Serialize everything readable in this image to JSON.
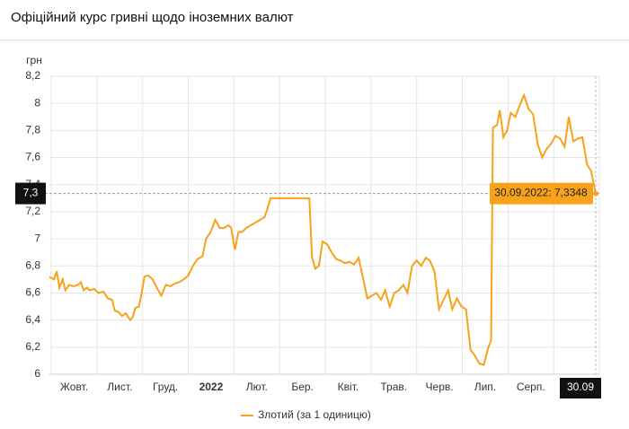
{
  "header": {
    "title": "Офіційний курс гривні щодо іноземних валют"
  },
  "chart_data": {
    "type": "line",
    "y_label": "грн",
    "x": [
      -0.04,
      0.06,
      0.12,
      0.18,
      0.25,
      0.31,
      0.39,
      0.49,
      0.59,
      0.65,
      0.71,
      0.78,
      0.84,
      0.94,
      1.04,
      1.14,
      1.24,
      1.33,
      1.39,
      1.47,
      1.55,
      1.63,
      1.73,
      1.78,
      1.84,
      1.92,
      1.98,
      2.04,
      2.12,
      2.22,
      2.31,
      2.41,
      2.51,
      2.61,
      2.71,
      2.8,
      2.9,
      3.0,
      3.1,
      3.2,
      3.31,
      3.39,
      3.49,
      3.59,
      3.69,
      3.78,
      3.88,
      3.94,
      4.02,
      4.1,
      4.18,
      4.27,
      4.37,
      4.47,
      4.57,
      4.67,
      4.73,
      4.8,
      4.96,
      5.16,
      5.35,
      5.65,
      5.71,
      5.78,
      5.86,
      5.94,
      6.04,
      6.14,
      6.24,
      6.33,
      6.43,
      6.53,
      6.63,
      6.73,
      6.82,
      6.92,
      7.02,
      7.12,
      7.22,
      7.31,
      7.41,
      7.51,
      7.61,
      7.71,
      7.8,
      7.9,
      8.0,
      8.1,
      8.2,
      8.29,
      8.39,
      8.49,
      8.59,
      8.69,
      8.78,
      8.88,
      8.98,
      9.08,
      9.18,
      9.27,
      9.37,
      9.47,
      9.57,
      9.63,
      9.67,
      9.76,
      9.82,
      9.9,
      9.98,
      10.06,
      10.16,
      10.25,
      10.35,
      10.45,
      10.55,
      10.65,
      10.75,
      10.84,
      10.94,
      11.04,
      11.14,
      11.24,
      11.33,
      11.43,
      11.53,
      11.63,
      11.73,
      11.82,
      11.92
    ],
    "series": [
      {
        "name": "Злотий (за 1 одиницю)",
        "color": "#f7a21b",
        "values": [
          6.72,
          6.7,
          6.76,
          6.64,
          6.7,
          6.62,
          6.66,
          6.65,
          6.66,
          6.68,
          6.62,
          6.64,
          6.62,
          6.63,
          6.6,
          6.61,
          6.56,
          6.55,
          6.47,
          6.46,
          6.43,
          6.45,
          6.4,
          6.42,
          6.49,
          6.5,
          6.6,
          6.72,
          6.73,
          6.7,
          6.64,
          6.58,
          6.66,
          6.65,
          6.67,
          6.68,
          6.7,
          6.73,
          6.8,
          6.85,
          6.87,
          7.0,
          7.05,
          7.14,
          7.08,
          7.08,
          7.1,
          7.08,
          6.92,
          7.05,
          7.05,
          7.08,
          7.1,
          7.12,
          7.14,
          7.16,
          7.22,
          7.3,
          7.3,
          7.3,
          7.3,
          7.3,
          6.86,
          6.78,
          6.8,
          6.98,
          6.96,
          6.9,
          6.85,
          6.84,
          6.82,
          6.83,
          6.81,
          6.86,
          6.72,
          6.56,
          6.58,
          6.6,
          6.55,
          6.62,
          6.5,
          6.6,
          6.62,
          6.66,
          6.6,
          6.8,
          6.84,
          6.8,
          6.86,
          6.84,
          6.76,
          6.48,
          6.55,
          6.62,
          6.48,
          6.56,
          6.5,
          6.48,
          6.18,
          6.14,
          6.08,
          6.07,
          6.2,
          6.25,
          7.82,
          7.84,
          7.95,
          7.75,
          7.8,
          7.93,
          7.9,
          7.98,
          8.06,
          7.96,
          7.92,
          7.7,
          7.6,
          7.66,
          7.7,
          7.76,
          7.74,
          7.68,
          7.9,
          7.72,
          7.74,
          7.75,
          7.55,
          7.5,
          7.3348
        ]
      }
    ],
    "xlim": [
      -0.04,
      12
    ],
    "xticks": [
      {
        "value": 0.5,
        "label": "Жовт."
      },
      {
        "value": 1.5,
        "label": "Лист."
      },
      {
        "value": 2.5,
        "label": "Груд."
      },
      {
        "value": 3.5,
        "label": "2022"
      },
      {
        "value": 4.5,
        "label": "Лют."
      },
      {
        "value": 5.5,
        "label": "Бер."
      },
      {
        "value": 6.5,
        "label": "Квіт."
      },
      {
        "value": 7.5,
        "label": "Трав."
      },
      {
        "value": 8.5,
        "label": "Черв."
      },
      {
        "value": 9.5,
        "label": "Лип."
      },
      {
        "value": 10.5,
        "label": "Серп."
      }
    ],
    "ylim": [
      6,
      8.2
    ],
    "yticks": [
      6,
      {
        "value": 6.2,
        "label": "6,2"
      },
      {
        "value": 6.4,
        "label": "6,4"
      },
      {
        "value": 6.6,
        "label": "6,6"
      },
      {
        "value": 6.8,
        "label": "6,8"
      },
      7,
      {
        "value": 7.2,
        "label": "7,2"
      },
      {
        "value": 7.4,
        "label": "7,4"
      },
      {
        "value": 7.6,
        "label": "7,6"
      },
      {
        "value": 7.8,
        "label": "7,8"
      },
      8,
      {
        "value": 8.2,
        "label": "8,2"
      }
    ],
    "grid": true,
    "tooltip": "30.09.2022: 7,3348",
    "crosshair_y_label": "7,3",
    "crosshair_x_label": "30.09"
  }
}
